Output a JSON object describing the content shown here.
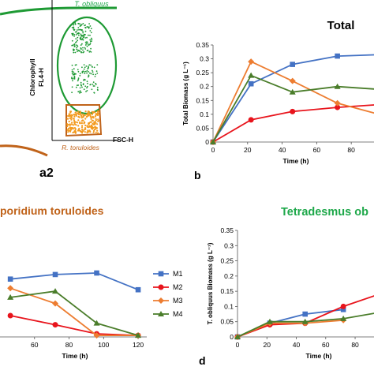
{
  "colors": {
    "M1": "#4472c4",
    "M2": "#e8141c",
    "M3": "#ed7d31",
    "M4": "#4a7d2a",
    "green_title": "#1ea84a",
    "orange_title": "#c0631a",
    "scatter_green": "#1e9a34",
    "scatter_orange": "#f39a1e"
  },
  "panel_a": {
    "label": "a2",
    "top_label": "T. obliquus",
    "bottom_label": "R. toruloides",
    "y_axis_line1": "Chlorophyll",
    "y_axis_line2": "FL4-H",
    "x_axis": "FSC-H"
  },
  "chart_data": [
    {
      "panel": "b",
      "type": "line",
      "title": "Total",
      "xlabel": "Time (h)",
      "ylabel": "Total Biomass (g L⁻¹)",
      "xlim": [
        0,
        95
      ],
      "ylim": [
        0,
        0.35
      ],
      "x_ticks": [
        0,
        20,
        40,
        60,
        80
      ],
      "y_ticks": [
        "0",
        "0.05",
        "0.1",
        "0.15",
        "0.2",
        "0.25",
        "0.3",
        "0.35"
      ],
      "series": [
        {
          "name": "M1",
          "x": [
            0,
            22,
            46,
            72,
            96
          ],
          "y": [
            0.0,
            0.21,
            0.28,
            0.31,
            0.315
          ]
        },
        {
          "name": "M2",
          "x": [
            0,
            22,
            46,
            72,
            96
          ],
          "y": [
            0.0,
            0.08,
            0.11,
            0.125,
            0.135
          ]
        },
        {
          "name": "M3",
          "x": [
            0,
            22,
            46,
            72,
            96
          ],
          "y": [
            0.0,
            0.29,
            0.22,
            0.14,
            0.1
          ]
        },
        {
          "name": "M4",
          "x": [
            0,
            22,
            46,
            72,
            96
          ],
          "y": [
            0.0,
            0.24,
            0.18,
            0.2,
            0.19
          ]
        }
      ]
    },
    {
      "panel": "c",
      "type": "line",
      "title": "poridium toruloides",
      "xlabel": "Time (h)",
      "xlim": [
        40,
        125
      ],
      "x_ticks": [
        60,
        80,
        100,
        120
      ],
      "legend": [
        "M1",
        "M2",
        "M3",
        "M4"
      ],
      "series": [
        {
          "name": "M1",
          "x": [
            46,
            72,
            96,
            120
          ],
          "y": [
            0.19,
            0.205,
            0.21,
            0.155
          ]
        },
        {
          "name": "M2",
          "x": [
            46,
            72,
            96,
            120
          ],
          "y": [
            0.07,
            0.04,
            0.01,
            0.005
          ]
        },
        {
          "name": "M3",
          "x": [
            46,
            72,
            96,
            120
          ],
          "y": [
            0.16,
            0.11,
            0.005,
            0.005
          ]
        },
        {
          "name": "M4",
          "x": [
            46,
            72,
            96,
            120
          ],
          "y": [
            0.13,
            0.15,
            0.045,
            0.005
          ]
        }
      ]
    },
    {
      "panel": "d",
      "type": "line",
      "title": "Tetradesmus ob",
      "xlabel": "Time (h)",
      "ylabel": "T. obliquus Biomass (g L⁻¹)",
      "xlim": [
        0,
        95
      ],
      "ylim": [
        0,
        0.35
      ],
      "x_ticks": [
        0,
        20,
        40,
        60,
        80
      ],
      "y_ticks": [
        "0",
        "0.05",
        "0.1",
        "0.15",
        "0.2",
        "0.25",
        "0.3",
        "0.35"
      ],
      "series": [
        {
          "name": "M1",
          "x": [
            0,
            22,
            46,
            72
          ],
          "y": [
            0.0,
            0.045,
            0.075,
            0.09
          ]
        },
        {
          "name": "M2",
          "x": [
            0,
            22,
            46,
            72,
            96
          ],
          "y": [
            0.0,
            0.04,
            0.045,
            0.1,
            0.14
          ]
        },
        {
          "name": "M3",
          "x": [
            0,
            22,
            46,
            72
          ],
          "y": [
            0.0,
            0.045,
            0.045,
            0.055
          ]
        },
        {
          "name": "M4",
          "x": [
            0,
            22,
            46,
            72,
            96
          ],
          "y": [
            0.0,
            0.05,
            0.05,
            0.06,
            0.08
          ]
        }
      ]
    }
  ]
}
